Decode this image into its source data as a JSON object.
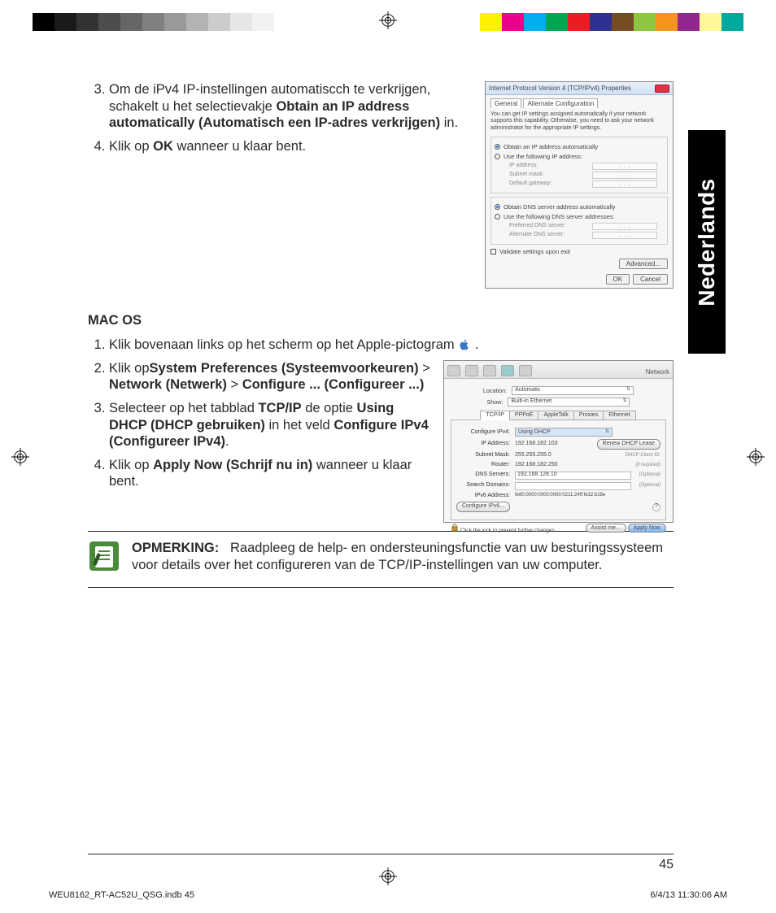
{
  "crop_bars": {
    "left_grays": [
      "#000000",
      "#1a1a1a",
      "#333333",
      "#4d4d4d",
      "#666666",
      "#808080",
      "#999999",
      "#b3b3b3",
      "#cccccc",
      "#e6e6e6",
      "#f2f2f2",
      "#ffffff"
    ],
    "right_colors": [
      "#fff200",
      "#ec008c",
      "#00aeef",
      "#00a651",
      "#ed1c24",
      "#2e3192",
      "#754c24",
      "#8dc63f",
      "#f7941d",
      "#92278f",
      "#fff799",
      "#00a99d"
    ]
  },
  "section1": {
    "steps": {
      "s3": {
        "pre": "Om de iPv4 IP-instellingen automatiscch te verkrijgen, schakelt u het selectievakje ",
        "bold": "Obtain an IP address automatically (Automatisch een IP-adres verkrijgen)",
        "post": " in."
      },
      "s4": {
        "pre": "Klik op ",
        "bold": "OK",
        "post": " wanneer u klaar bent."
      }
    }
  },
  "ipv4_dialog": {
    "title": "Internet Protocol Version 4 (TCP/IPv4) Properties",
    "tabs": [
      "General",
      "Alternate Configuration"
    ],
    "desc": "You can get IP settings assigned automatically if your network supports this capability. Otherwise, you need to ask your network administrator for the appropriate IP settings.",
    "opt_auto_ip": "Obtain an IP address automatically",
    "opt_use_ip": "Use the following IP address:",
    "lbl_ip": "IP address:",
    "lbl_subnet": "Subnet mask:",
    "lbl_gateway": "Default gateway:",
    "opt_auto_dns": "Obtain DNS server address automatically",
    "opt_use_dns": "Use the following DNS server addresses:",
    "lbl_pref_dns": "Preferred DNS server:",
    "lbl_alt_dns": "Alternate DNS server:",
    "chk_validate": "Validate settings upon exit",
    "btn_adv": "Advanced...",
    "btn_ok": "OK",
    "btn_cancel": "Cancel"
  },
  "macos_heading": "MAC OS",
  "macos_steps": {
    "s1": {
      "text": "Klik bovenaan links op het scherm op het Apple-pictogram ",
      "tail": "."
    },
    "s2": {
      "pre": "Klik op",
      "b1": "System Preferences (Systeemvoorkeuren)",
      "gt1": " > ",
      "b2": "Network (Netwerk)",
      "gt2": " > ",
      "b3": "Configure ... (Configureer ...)"
    },
    "s3": {
      "pre": "Selecteer op het tabblad ",
      "b1": "TCP/IP",
      "mid": " de optie ",
      "b2": "Using DHCP (DHCP gebruiken)",
      "mid2": " in het veld ",
      "b3": "Configure IPv4 (Configureer IPv4)",
      "post": "."
    },
    "s4": {
      "pre": "Klik op ",
      "b1": "Apply Now (Schrijf nu in)",
      "post": " wanneer u klaar bent."
    }
  },
  "mac_dialog": {
    "title": "Network",
    "toolbar_items": [
      "Show All",
      "Displays",
      "Sound",
      "Network",
      "Startup Disk"
    ],
    "location_label": "Location:",
    "location_value": "Automatic",
    "show_label": "Show:",
    "show_value": "Built-in Ethernet",
    "tabs": [
      "TCP/IP",
      "PPPoE",
      "AppleTalk",
      "Proxies",
      "Ethernet"
    ],
    "cfg_label": "Configure IPv4:",
    "cfg_value": "Using DHCP",
    "renew_btn": "Renew DHCP Lease",
    "rows": {
      "ip": {
        "label": "IP Address:",
        "value": "192.168.182.103"
      },
      "mask": {
        "label": "Subnet Mask:",
        "value": "255.255.255.0",
        "side": "DHCP Client ID:"
      },
      "router": {
        "label": "Router:",
        "value": "192.168.182.250",
        "side": "(if required)"
      },
      "dns": {
        "label": "DNS Servers:",
        "value": "192.168.128.10",
        "side": "(Optional)"
      },
      "search": {
        "label": "Search Domains:",
        "value": "",
        "side": "(Optional)"
      },
      "ipv6": {
        "label": "IPv6 Address:",
        "value": "fe80:0000:0000:0000:0211:24ff:fe32:b18e"
      }
    },
    "cfg6_btn": "Configure IPv6...",
    "lock_text": "Click the lock to prevent further changes.",
    "assist_btn": "Assist me...",
    "apply_btn": "Apply Now"
  },
  "note": {
    "label": "OPMERKING:",
    "text": "Raadpleeg de help- en ondersteuningsfunctie van uw besturingssysteem voor details over het configureren van de TCP/IP-instellingen van uw computer."
  },
  "page_number": "45",
  "lang_tab": "Nederlands",
  "footer": {
    "left": "WEU8162_RT-AC52U_QSG.indb   45",
    "right": "6/4/13   11:30:06 AM"
  }
}
